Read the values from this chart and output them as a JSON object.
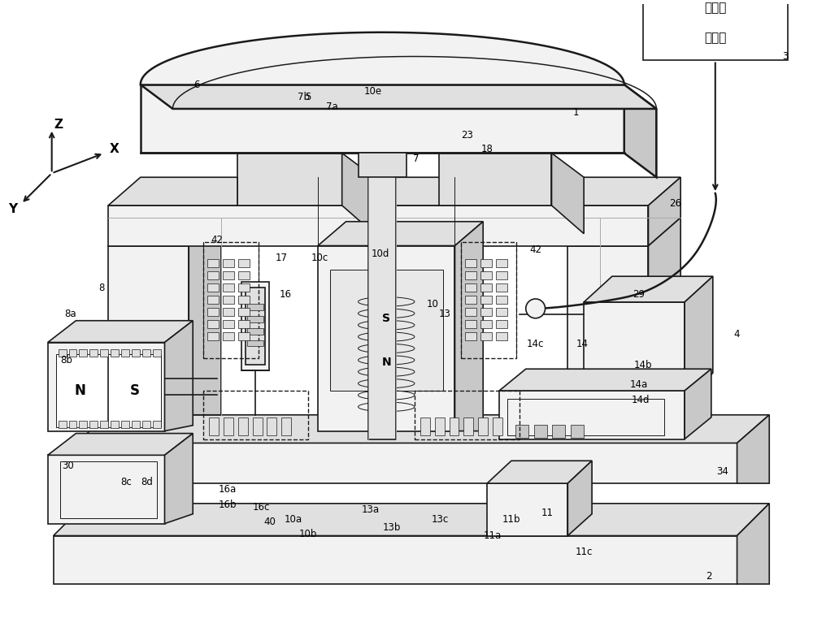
{
  "bg_color": "#ffffff",
  "fig_width": 10.0,
  "fig_height": 7.67,
  "line_color": "#1a1a1a",
  "lw_main": 1.2,
  "lw_thick": 1.8,
  "lw_thin": 0.7,
  "fc_light": "#f2f2f2",
  "fc_mid": "#e0e0e0",
  "fc_dark": "#c8c8c8",
  "fc_white": "#ffffff",
  "box3_text1": "洁净压",
  "box3_text2": "缩气源",
  "ns_left_n": "N",
  "ns_left_s": "S",
  "ns_center_s": "S",
  "ns_center_n": "N"
}
